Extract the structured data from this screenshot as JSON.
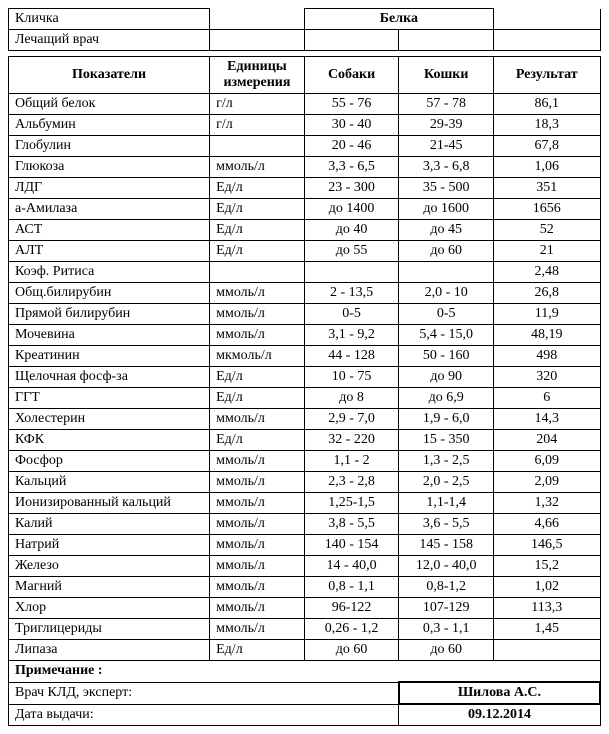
{
  "header": {
    "nickname_label": "Кличка",
    "nickname_value": "Белка",
    "doctor_label": "Лечащий врач"
  },
  "columns": {
    "indicator": "Показатели",
    "unit": "Единицы измерения",
    "dogs": "Собаки",
    "cats": "Кошки",
    "result": "Результат"
  },
  "rows": [
    {
      "i": "Общий белок",
      "u": "г/л",
      "d": "55 - 76",
      "c": "57 - 78",
      "r": "86,1"
    },
    {
      "i": "Альбумин",
      "u": "г/л",
      "d": "30 - 40",
      "c": "29-39",
      "r": "18,3"
    },
    {
      "i": "Глобулин",
      "u": "",
      "d": "20 - 46",
      "c": "21-45",
      "r": "67,8"
    },
    {
      "i": "Глюкоза",
      "u": "ммоль/л",
      "d": "3,3 - 6,5",
      "c": "3,3 - 6,8",
      "r": "1,06"
    },
    {
      "i": "ЛДГ",
      "u": "Ед/л",
      "d": "23 - 300",
      "c": "35 - 500",
      "r": "351"
    },
    {
      "i": "а-Амилаза",
      "u": "Ед/л",
      "d": "до 1400",
      "c": "до 1600",
      "r": "1656"
    },
    {
      "i": "АСТ",
      "u": "Ед/л",
      "d": "до 40",
      "c": "до 45",
      "r": "52"
    },
    {
      "i": "АЛТ",
      "u": "Ед/л",
      "d": "до 55",
      "c": "до 60",
      "r": "21"
    },
    {
      "i": "Коэф. Ритиса",
      "u": "",
      "d": "",
      "c": "",
      "r": "2,48"
    },
    {
      "i": "Общ.билирубин",
      "u": "ммоль/л",
      "d": "2 - 13,5",
      "c": "2,0 - 10",
      "r": "26,8"
    },
    {
      "i": "Прямой билирубин",
      "u": "ммоль/л",
      "d": "0-5",
      "c": "0-5",
      "r": "11,9"
    },
    {
      "i": "Мочевина",
      "u": "ммоль/л",
      "d": "3,1 - 9,2",
      "c": "5,4 - 15,0",
      "r": "48,19"
    },
    {
      "i": "Креатинин",
      "u": "мкмоль/л",
      "d": "44 - 128",
      "c": "50 - 160",
      "r": "498"
    },
    {
      "i": "Щелочная фосф-за",
      "u": "Ед/л",
      "d": "10 - 75",
      "c": "до 90",
      "r": "320"
    },
    {
      "i": "ГГТ",
      "u": "Ед/л",
      "d": "до 8",
      "c": "до 6,9",
      "r": "6"
    },
    {
      "i": "Холестерин",
      "u": "ммоль/л",
      "d": "2,9 - 7,0",
      "c": "1,9 - 6,0",
      "r": "14,3"
    },
    {
      "i": "КФК",
      "u": "Ед/л",
      "d": "32 - 220",
      "c": "15 - 350",
      "r": "204"
    },
    {
      "i": "Фосфор",
      "u": "ммоль/л",
      "d": "1,1 - 2",
      "c": "1,3 - 2,5",
      "r": "6,09"
    },
    {
      "i": "Кальций",
      "u": "ммоль/л",
      "d": "2,3 - 2,8",
      "c": "2,0 - 2,5",
      "r": "2,09"
    },
    {
      "i": "Ионизированный кальций",
      "u": "ммоль/л",
      "d": "1,25-1,5",
      "c": "1,1-1,4",
      "r": "1,32"
    },
    {
      "i": "Калий",
      "u": "ммоль/л",
      "d": "3,8 - 5,5",
      "c": "3,6 - 5,5",
      "r": "4,66"
    },
    {
      "i": "Натрий",
      "u": "ммоль/л",
      "d": "140 - 154",
      "c": "145 - 158",
      "r": "146,5"
    },
    {
      "i": "Железо",
      "u": "ммоль/л",
      "d": "14 - 40,0",
      "c": "12,0 - 40,0",
      "r": "15,2"
    },
    {
      "i": "Магний",
      "u": "ммоль/л",
      "d": "0,8 - 1,1",
      "c": "0,8-1,2",
      "r": "1,02"
    },
    {
      "i": "Хлор",
      "u": "ммоль/л",
      "d": "96-122",
      "c": "107-129",
      "r": "113,3"
    },
    {
      "i": "Триглицериды",
      "u": "ммоль/л",
      "d": "0,26 - 1,2",
      "c": "0,3 - 1,1",
      "r": "1,45"
    },
    {
      "i": "Липаза",
      "u": "Ед/л",
      "d": "до 60",
      "c": "до 60",
      "r": ""
    }
  ],
  "footer": {
    "note_label": "Примечание :",
    "expert_label": "Врач КЛД, эксперт:",
    "expert_name": "Шилова А.С.",
    "date_label": "Дата выдачи:",
    "date_value": "09.12.2014"
  },
  "style": {
    "font_family": "Times New Roman",
    "font_size_pt": 11,
    "border_color": "#000000",
    "background_color": "#ffffff"
  }
}
